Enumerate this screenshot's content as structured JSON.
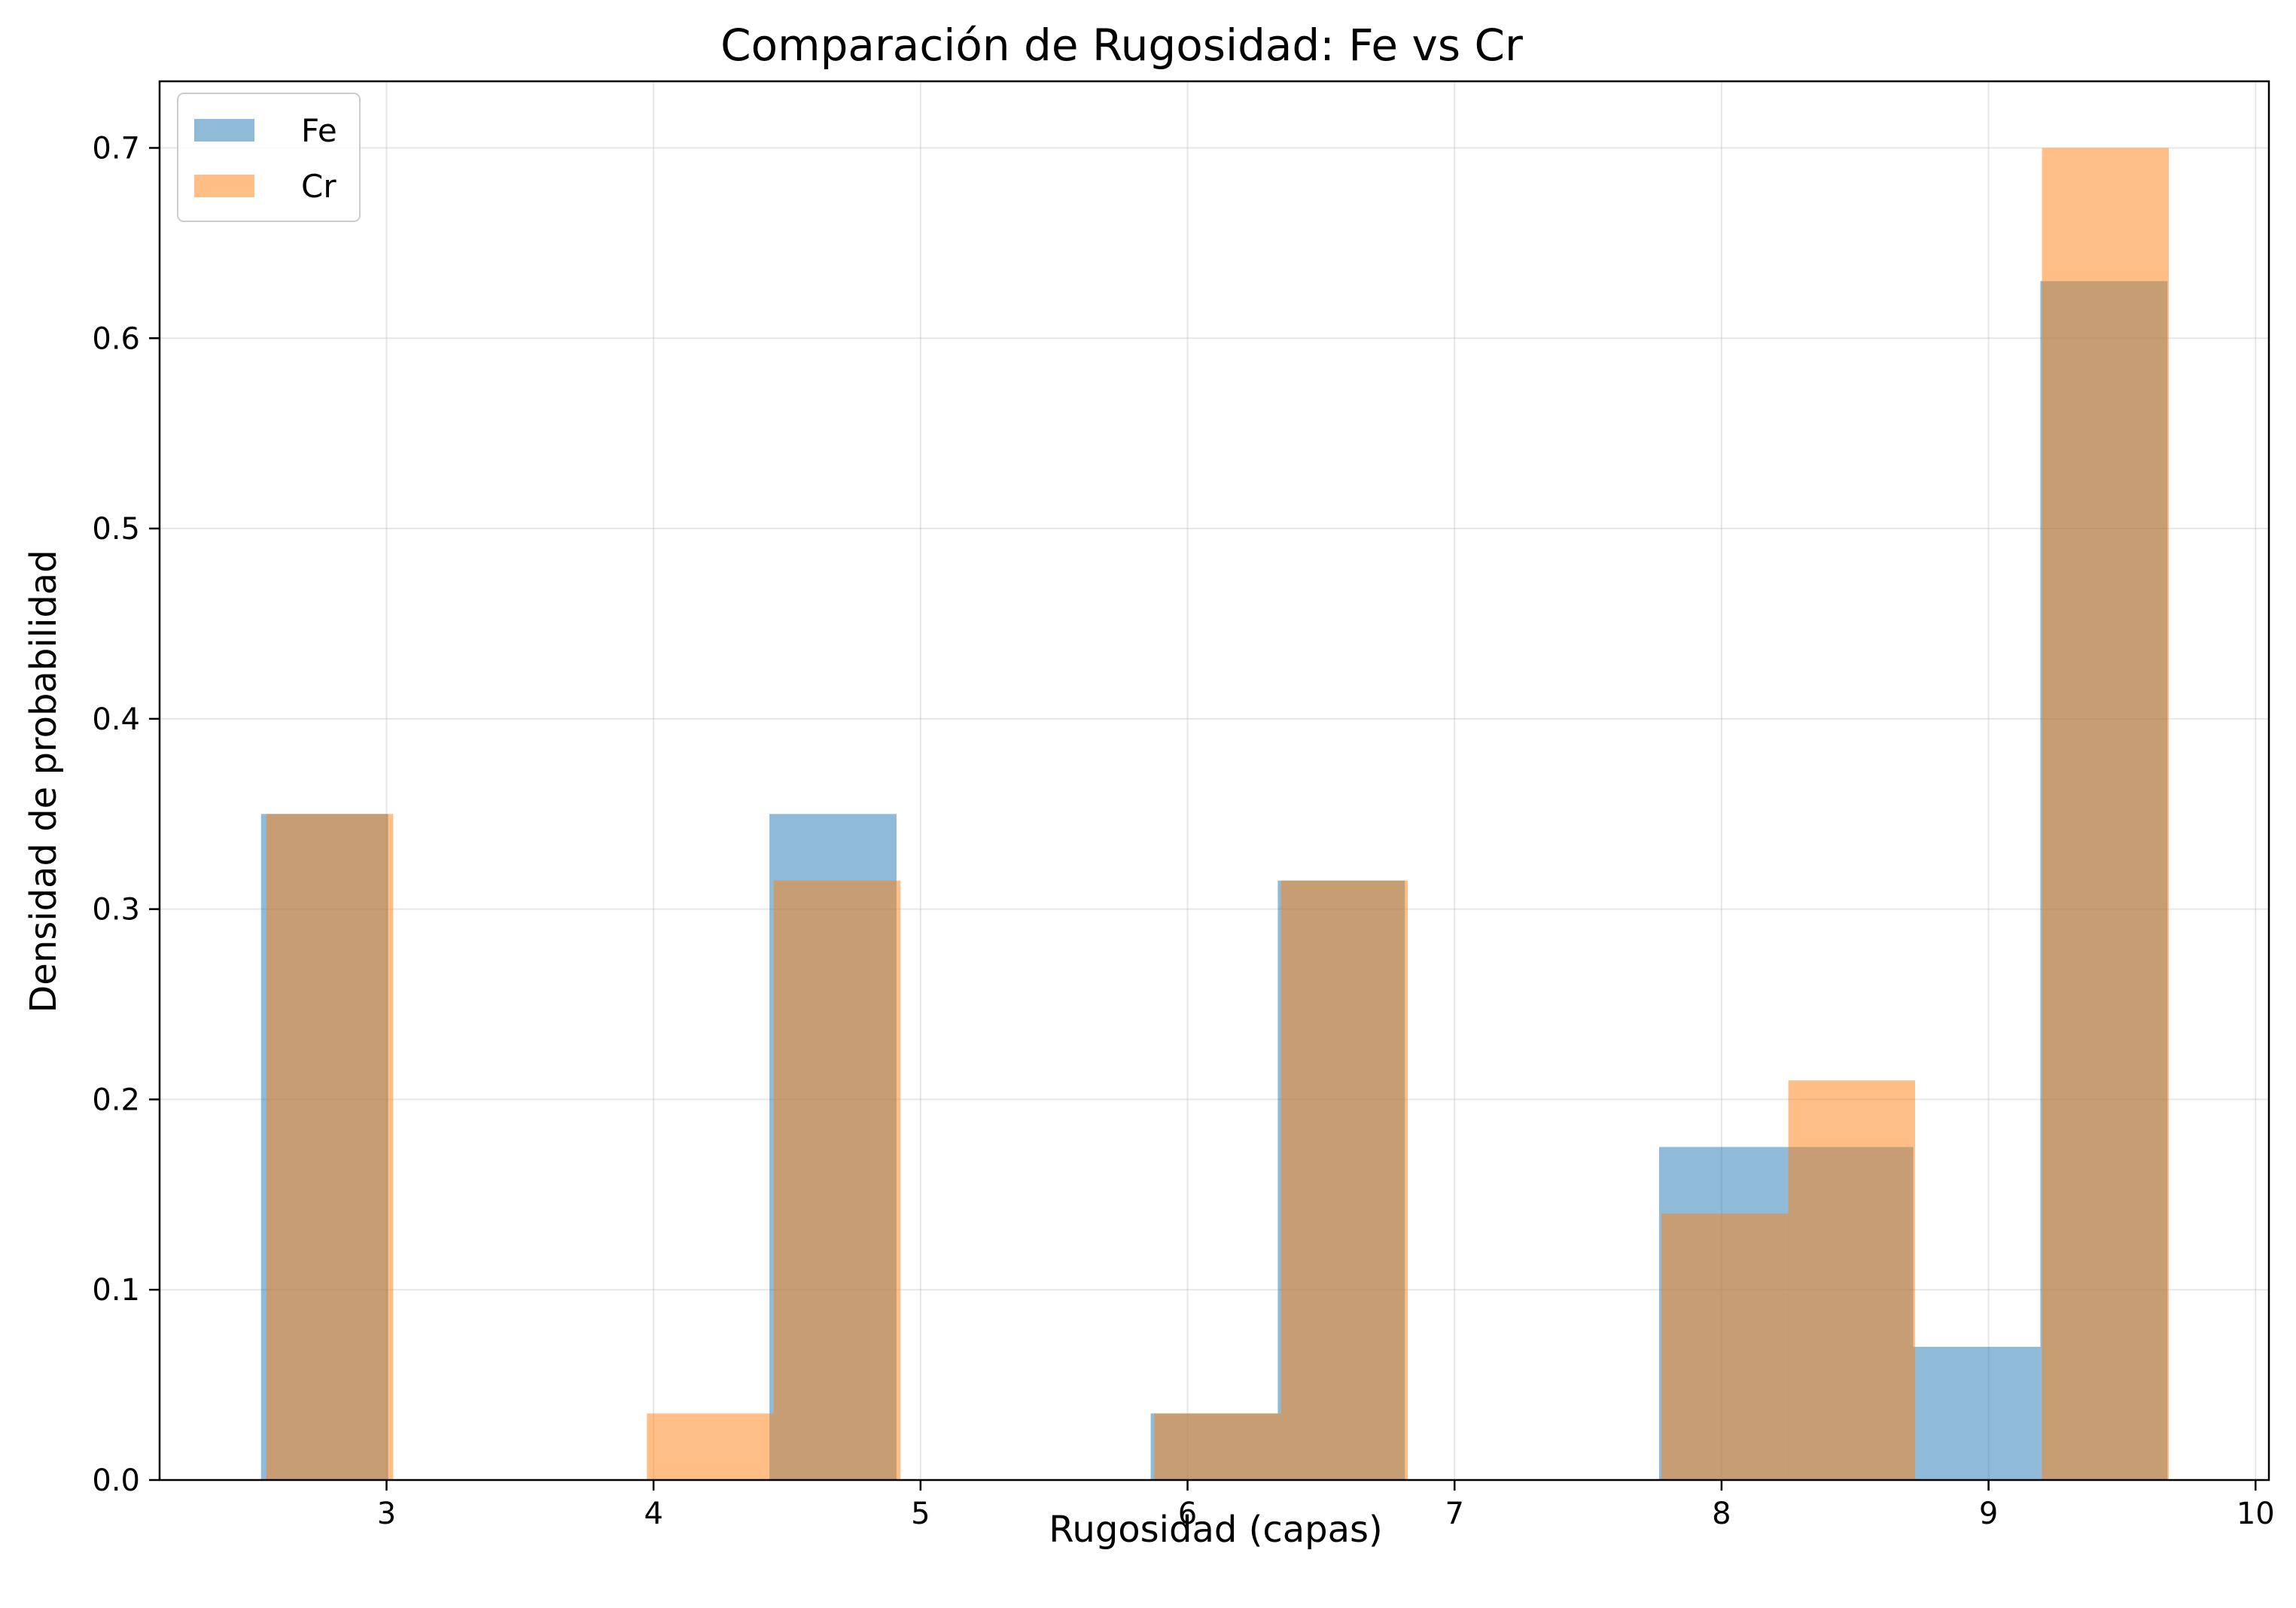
{
  "chart_data": {
    "type": "histogram",
    "title": "Comparación de Rugosidad: Fe vs Cr",
    "xlabel": "Rugosidad (capas)",
    "ylabel": "Densidad de probabilidad",
    "xlim": [
      2.15,
      10.05
    ],
    "ylim": [
      0.0,
      0.735
    ],
    "xticks": [
      3,
      4,
      5,
      6,
      7,
      8,
      9,
      10
    ],
    "yticks": [
      0.0,
      0.1,
      0.2,
      0.3,
      0.4,
      0.5,
      0.6,
      0.7
    ],
    "xtick_labels": [
      "3",
      "4",
      "5",
      "6",
      "7",
      "8",
      "9",
      "10"
    ],
    "ytick_labels": [
      "0.0",
      "0.1",
      "0.2",
      "0.3",
      "0.4",
      "0.5",
      "0.6",
      "0.7"
    ],
    "grid": true,
    "alpha": 0.5,
    "legend_position": "top-left",
    "series": [
      {
        "name": "Fe",
        "color": "#1f77b4",
        "bins": [
          2.53,
          3.006,
          3.482,
          3.958,
          4.434,
          4.91,
          5.386,
          5.862,
          6.338,
          6.814,
          7.29,
          7.766,
          8.242,
          8.718,
          9.194,
          9.67
        ],
        "values": [
          0.35,
          0.0,
          0.0,
          0.0,
          0.35,
          0.0,
          0.0,
          0.035,
          0.315,
          0.0,
          0.0,
          0.175,
          0.175,
          0.07,
          0.63
        ]
      },
      {
        "name": "Cr",
        "color": "#ff7f0e",
        "bins": [
          2.55,
          3.025,
          3.5,
          3.975,
          4.45,
          4.925,
          5.4,
          5.875,
          6.35,
          6.825,
          7.3,
          7.775,
          8.25,
          8.725,
          9.2,
          9.675
        ],
        "values": [
          0.35,
          0.0,
          0.0,
          0.035,
          0.315,
          0.0,
          0.0,
          0.035,
          0.315,
          0.0,
          0.0,
          0.14,
          0.21,
          0.0,
          0.7
        ]
      }
    ]
  }
}
